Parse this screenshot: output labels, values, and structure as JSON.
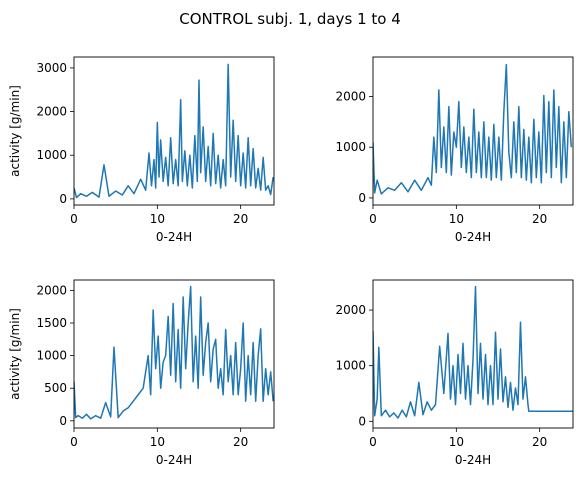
{
  "figure": {
    "title": "CONTROL subj. 1, days 1 to 4",
    "line_color": "#1f77b4"
  },
  "chart_data": [
    {
      "type": "line",
      "panel": "day 1",
      "xlabel": "0-24H",
      "ylabel": "activity [g/min]",
      "xlim": [
        0,
        24
      ],
      "ylim": [
        -140,
        3250
      ],
      "xticks": [
        "0",
        "10",
        "20"
      ],
      "yticks": [
        "0",
        "1000",
        "2000",
        "3000"
      ],
      "grid": false,
      "legend": "none",
      "x": [
        0,
        0.3,
        0.8,
        1.5,
        2.2,
        3.0,
        3.6,
        4.2,
        5.0,
        5.8,
        6.5,
        7.2,
        8.0,
        8.6,
        9.0,
        9.3,
        9.6,
        9.8,
        10.0,
        10.2,
        10.4,
        10.7,
        11.0,
        11.3,
        11.6,
        11.9,
        12.2,
        12.5,
        12.8,
        13.0,
        13.3,
        13.6,
        13.9,
        14.2,
        14.5,
        14.8,
        15.0,
        15.2,
        15.5,
        15.8,
        16.1,
        16.4,
        16.7,
        17.0,
        17.3,
        17.6,
        17.9,
        18.2,
        18.5,
        18.8,
        19.1,
        19.4,
        19.7,
        20.0,
        20.3,
        20.6,
        20.9,
        21.2,
        21.5,
        21.8,
        22.1,
        22.4,
        22.7,
        23.0,
        23.3,
        23.6,
        23.9
      ],
      "y": [
        250,
        30,
        120,
        60,
        150,
        40,
        780,
        60,
        180,
        90,
        300,
        120,
        450,
        200,
        1050,
        300,
        900,
        250,
        1750,
        500,
        1350,
        400,
        950,
        300,
        1400,
        350,
        900,
        300,
        2270,
        400,
        1100,
        300,
        1000,
        250,
        1450,
        400,
        2720,
        600,
        1650,
        400,
        1200,
        300,
        1500,
        350,
        1000,
        250,
        900,
        300,
        3080,
        500,
        1800,
        400,
        1450,
        300,
        1050,
        250,
        1400,
        300,
        1150,
        250,
        700,
        200,
        950,
        200,
        300,
        100,
        500
      ]
    },
    {
      "type": "line",
      "panel": "day 2",
      "xlabel": "0-24H",
      "ylabel": "",
      "xlim": [
        0,
        24
      ],
      "ylim": [
        -140,
        2780
      ],
      "xticks": [
        "0",
        "10",
        "20"
      ],
      "yticks": [
        "0",
        "1000",
        "2000"
      ],
      "grid": false,
      "legend": "none",
      "x": [
        0,
        0.2,
        0.5,
        1.0,
        1.8,
        2.6,
        3.4,
        4.2,
        5.0,
        5.8,
        6.6,
        7.0,
        7.3,
        7.6,
        7.9,
        8.2,
        8.5,
        8.8,
        9.1,
        9.4,
        9.7,
        10.0,
        10.3,
        10.6,
        10.9,
        11.2,
        11.5,
        11.8,
        12.1,
        12.4,
        12.7,
        13.0,
        13.3,
        13.6,
        13.9,
        14.2,
        14.5,
        14.8,
        15.1,
        15.4,
        15.7,
        16.0,
        16.3,
        16.6,
        16.9,
        17.2,
        17.5,
        17.8,
        18.1,
        18.4,
        18.7,
        19.0,
        19.3,
        19.6,
        19.9,
        20.2,
        20.5,
        20.8,
        21.1,
        21.4,
        21.7,
        22.0,
        22.3,
        22.6,
        22.9,
        23.2,
        23.5,
        23.8
      ],
      "y": [
        1100,
        100,
        350,
        80,
        200,
        150,
        300,
        120,
        350,
        150,
        400,
        250,
        1200,
        500,
        2130,
        600,
        1400,
        500,
        1800,
        450,
        1300,
        1000,
        1900,
        600,
        1400,
        500,
        1200,
        400,
        1750,
        500,
        1300,
        400,
        1500,
        400,
        1200,
        350,
        1450,
        400,
        1200,
        350,
        1700,
        2630,
        900,
        400,
        1500,
        500,
        1800,
        400,
        1350,
        350,
        1200,
        300,
        1550,
        400,
        1300,
        300,
        2020,
        500,
        1900,
        400,
        2130,
        600,
        1800,
        300,
        1500,
        400,
        1700,
        1000
      ]
    },
    {
      "type": "line",
      "panel": "day 3",
      "xlabel": "0-24H",
      "ylabel": "activity [g/min]",
      "xlim": [
        0,
        24
      ],
      "ylim": [
        -110,
        2160
      ],
      "xticks": [
        "0",
        "10",
        "20"
      ],
      "yticks": [
        "0",
        "500",
        "1000",
        "1500",
        "2000"
      ],
      "grid": false,
      "legend": "none",
      "x": [
        0,
        0.2,
        0.5,
        1.0,
        1.5,
        2.0,
        2.6,
        3.2,
        3.8,
        4.4,
        4.8,
        5.3,
        5.9,
        6.5,
        7.1,
        7.7,
        8.3,
        8.9,
        9.2,
        9.5,
        9.8,
        10.1,
        10.4,
        10.7,
        11.0,
        11.3,
        11.6,
        11.9,
        12.2,
        12.5,
        12.8,
        13.1,
        13.4,
        13.7,
        14.0,
        14.3,
        14.6,
        14.9,
        15.2,
        15.5,
        15.8,
        16.1,
        16.4,
        16.7,
        17.0,
        17.3,
        17.6,
        17.9,
        18.2,
        18.5,
        18.8,
        19.1,
        19.4,
        19.7,
        20.0,
        20.3,
        20.6,
        20.9,
        21.2,
        21.5,
        21.8,
        22.1,
        22.4,
        22.7,
        23.0,
        23.3,
        23.6,
        23.9
      ],
      "y": [
        600,
        50,
        80,
        40,
        100,
        30,
        80,
        40,
        280,
        60,
        1130,
        50,
        150,
        200,
        300,
        400,
        500,
        1000,
        400,
        1700,
        800,
        1300,
        500,
        900,
        1000,
        1600,
        700,
        1800,
        600,
        1400,
        500,
        1900,
        800,
        1500,
        2060,
        600,
        1300,
        500,
        1900,
        700,
        1200,
        1500,
        600,
        1100,
        1250,
        500,
        800,
        400,
        1400,
        600,
        1000,
        400,
        1200,
        400,
        800,
        1500,
        300,
        1000,
        400,
        1200,
        300,
        1000,
        1410,
        300,
        800,
        400,
        750,
        300
      ]
    },
    {
      "type": "line",
      "panel": "day 4",
      "xlabel": "0-24H",
      "ylabel": "",
      "xlim": [
        0,
        24
      ],
      "ylim": [
        -120,
        2540
      ],
      "xticks": [
        "0",
        "10",
        "20"
      ],
      "yticks": [
        "0",
        "1000",
        "2000"
      ],
      "grid": false,
      "legend": "none",
      "x": [
        0,
        0.2,
        0.5,
        0.7,
        1.0,
        1.5,
        2.0,
        2.5,
        3.0,
        3.5,
        4.0,
        4.5,
        5.0,
        5.5,
        6.0,
        6.5,
        7.0,
        7.5,
        8.0,
        8.5,
        9.0,
        9.3,
        9.6,
        9.9,
        10.2,
        10.5,
        10.8,
        11.1,
        11.4,
        11.7,
        12.0,
        12.3,
        12.6,
        12.9,
        13.2,
        13.5,
        13.8,
        14.1,
        14.4,
        14.7,
        15.0,
        15.3,
        15.6,
        15.9,
        16.2,
        16.5,
        16.8,
        17.1,
        17.4,
        17.7,
        18.0,
        18.3,
        18.6,
        18.7,
        24.0
      ],
      "y": [
        1620,
        100,
        400,
        1330,
        100,
        200,
        80,
        150,
        60,
        200,
        80,
        350,
        100,
        700,
        120,
        350,
        200,
        300,
        1350,
        500,
        1580,
        400,
        1000,
        300,
        1200,
        500,
        1400,
        400,
        1000,
        300,
        1100,
        2420,
        500,
        1400,
        400,
        1200,
        300,
        1000,
        300,
        1600,
        400,
        1300,
        350,
        800,
        250,
        700,
        200,
        600,
        300,
        1780,
        400,
        800,
        300,
        180,
        180
      ]
    }
  ]
}
